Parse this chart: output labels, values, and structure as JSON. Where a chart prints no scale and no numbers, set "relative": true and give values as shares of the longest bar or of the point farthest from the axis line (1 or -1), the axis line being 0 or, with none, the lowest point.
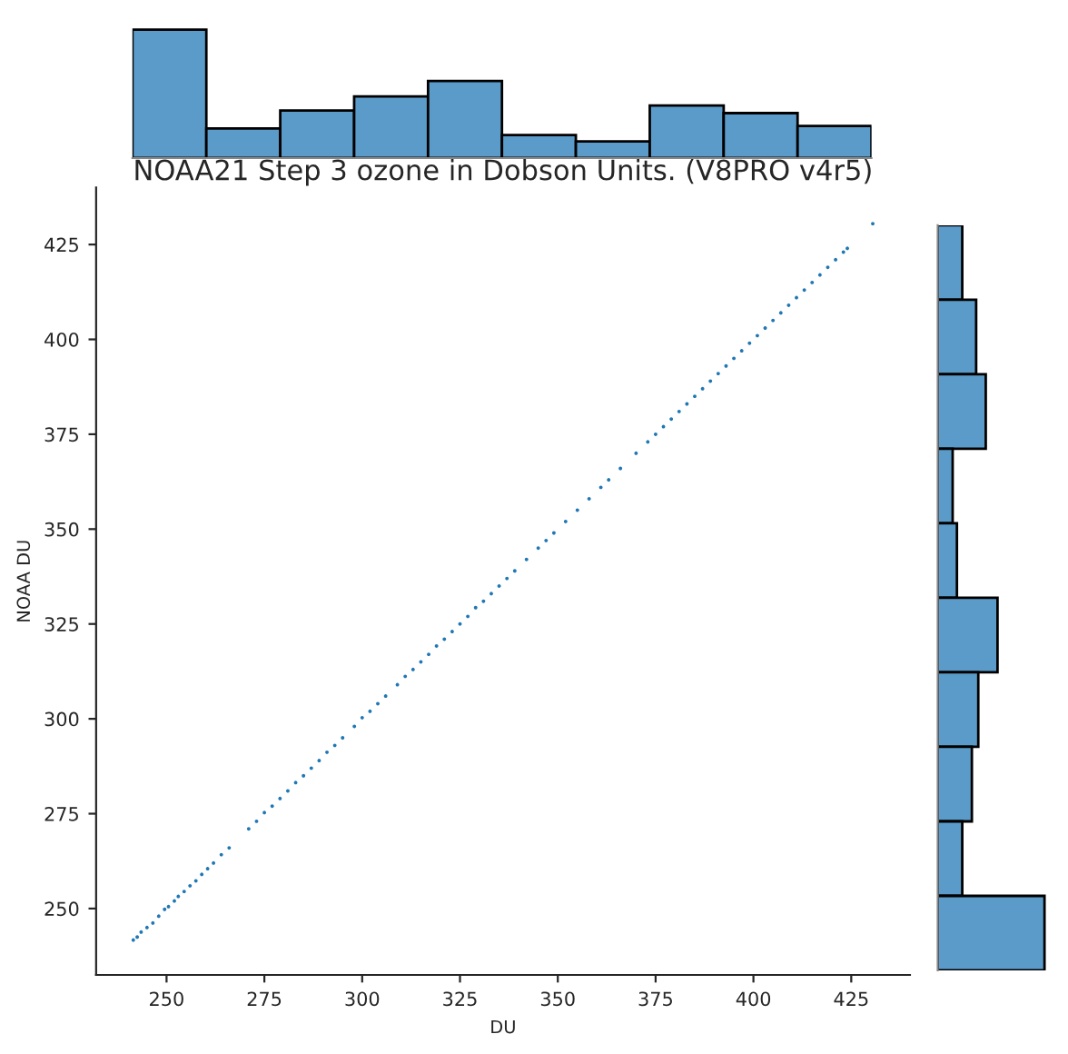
{
  "chart_data": [
    {
      "type": "bar",
      "relative": true,
      "categories": [
        null,
        null,
        null,
        null,
        null,
        null,
        null,
        null,
        null,
        null
      ],
      "values": [
        1,
        0.23,
        0.37,
        0.48,
        0.6,
        0.18,
        0.13,
        0.41,
        0.35,
        0.25
      ],
      "color": "#5b9bc9",
      "grid": false
    },
    {
      "type": "scatter",
      "title": "NOAA21 Step 3 ozone in Dobson Units. (V8PRO v4r5)",
      "xlabel": "DU",
      "ylabel": "NOAA DU",
      "marker": "circle",
      "grid": false,
      "xlim": [
        232,
        440
      ],
      "ylim": [
        232.5,
        440
      ],
      "xticks": [
        250,
        275,
        300,
        325,
        350,
        375,
        400,
        425
      ],
      "yticks": [
        250,
        275,
        300,
        325,
        350,
        375,
        400,
        425
      ],
      "series": [
        {
          "color": "#1f77b4",
          "x": [
            241.5,
            242.5,
            243.5,
            245,
            246.5,
            248,
            249.5,
            250.5,
            252,
            253,
            254.5,
            256,
            257.5,
            259,
            260.5,
            262,
            264,
            266,
            271,
            273,
            275,
            277,
            279,
            281,
            283,
            285,
            287,
            289,
            291,
            293,
            295,
            298,
            300,
            302,
            304,
            306,
            309,
            311,
            313,
            315,
            317,
            319,
            321,
            323,
            325,
            327,
            329,
            331,
            333,
            335,
            337,
            339,
            342,
            345,
            347,
            349,
            352,
            355,
            358,
            361,
            363,
            366,
            370,
            373,
            375,
            377,
            379,
            381,
            383,
            385,
            387,
            389,
            391,
            393,
            395,
            397,
            399,
            401,
            403,
            405,
            407,
            409,
            411,
            413,
            415,
            417,
            419,
            421,
            423,
            424,
            430.5
          ],
          "values": [
            241.7,
            242.5,
            243.8,
            245,
            246.2,
            248,
            249.8,
            250.5,
            252,
            253.2,
            254.5,
            256,
            257.3,
            259,
            260.5,
            262,
            264.2,
            266,
            271,
            273,
            275.3,
            277,
            279,
            281,
            283.2,
            285,
            287,
            289,
            291.2,
            293,
            295,
            298,
            300.3,
            302,
            304,
            306,
            309,
            311.2,
            313,
            315,
            317,
            319.2,
            321,
            323,
            325,
            327,
            329.3,
            331,
            333,
            335,
            337,
            339,
            342,
            345,
            347,
            349,
            352,
            355,
            358,
            361,
            363,
            366,
            370,
            373,
            375,
            377,
            379,
            381,
            383,
            385,
            387,
            389,
            391,
            393,
            395,
            397,
            399,
            401,
            403,
            405,
            407,
            409,
            411,
            413,
            415,
            417,
            419,
            421,
            423,
            424,
            430.5
          ]
        }
      ]
    },
    {
      "type": "bar",
      "orientation": "horizontal",
      "relative": true,
      "categories": [
        null,
        null,
        null,
        null,
        null,
        null,
        null,
        null,
        null,
        null
      ],
      "values": [
        0.23,
        0.36,
        0.45,
        0.14,
        0.18,
        0.56,
        0.38,
        0.32,
        0.23,
        1
      ],
      "color": "#5b9bc9",
      "grid": false
    }
  ]
}
